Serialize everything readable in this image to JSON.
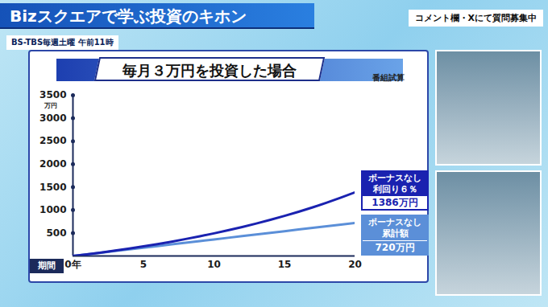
{
  "header": {
    "title": "Bizスクエアで学ぶ投資のキホン",
    "schedule": "BS-TBS毎週土曜 午前11時",
    "notice": "コメント欄・Xにて質問募集中"
  },
  "chart_data": {
    "type": "line",
    "title": "毎月３万円を投資した場合",
    "annotations": [
      "番組試算"
    ],
    "xlabel": "期間",
    "ylabel": "万円",
    "x": [
      0,
      1,
      2,
      3,
      4,
      5,
      6,
      7,
      8,
      9,
      10,
      11,
      12,
      13,
      14,
      15,
      16,
      17,
      18,
      19,
      20
    ],
    "xlim": [
      0,
      20
    ],
    "xticks": [
      {
        "value": 0,
        "label": "0年"
      },
      5,
      10,
      15,
      20
    ],
    "ylim": [
      0,
      3500
    ],
    "yticks": [
      500,
      1000,
      1500,
      2000,
      2500,
      3000,
      3500
    ],
    "grid": false,
    "series": [
      {
        "name": "ボーナスなし 利回り６％",
        "color": "#1a22b0",
        "values": [
          0,
          37,
          76,
          118,
          162,
          209,
          258,
          312,
          370,
          429,
          492,
          559,
          630,
          706,
          787,
          872,
          962,
          1058,
          1161,
          1270,
          1386
        ],
        "value_labels": [
          null,
          null,
          null,
          null,
          null,
          null,
          null,
          null,
          null,
          null,
          null,
          null,
          null,
          null,
          null,
          null,
          null,
          null,
          null,
          null,
          "1386万円"
        ]
      },
      {
        "name": "ボーナスなし 累計額",
        "color": "#5b8fd8",
        "values": [
          0,
          36,
          72,
          108,
          144,
          180,
          216,
          252,
          288,
          324,
          360,
          396,
          432,
          468,
          504,
          540,
          576,
          612,
          648,
          684,
          720
        ],
        "value_labels": [
          null,
          null,
          null,
          null,
          null,
          null,
          null,
          null,
          null,
          null,
          null,
          null,
          null,
          null,
          null,
          null,
          null,
          null,
          null,
          null,
          "720万円"
        ]
      }
    ]
  }
}
